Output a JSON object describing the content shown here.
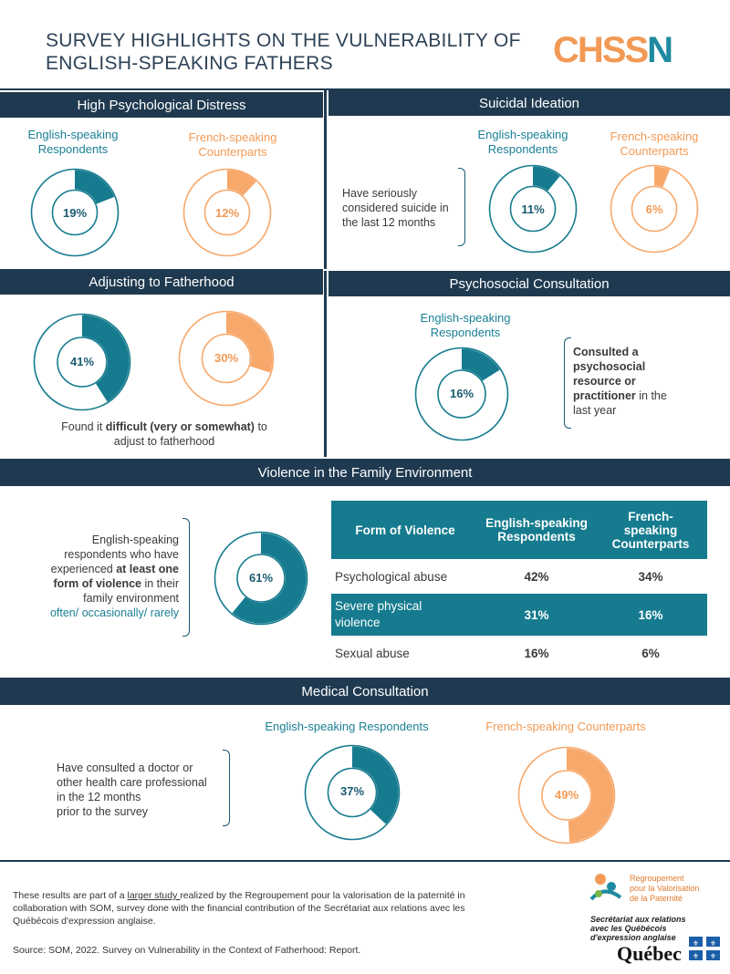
{
  "title_line1": "SURVEY HIGHLIGHTS ON THE  VULNERABILITY OF",
  "title_line2": "ENGLISH-SPEAKING FATHERS",
  "logo": {
    "part1": "CHSS",
    "part2": "N"
  },
  "colors": {
    "teal": "#167b8f",
    "orange": "#f7a86b",
    "navy": "#1f3a50"
  },
  "distress": {
    "header": "High Psychological Distress",
    "en_label": "English-speaking\nRespondents",
    "fr_label": "French-speaking\nCounterparts",
    "en_value": 19,
    "en_text": "19%",
    "fr_value": 12,
    "fr_text": "12%"
  },
  "suicide": {
    "header": "Suicidal Ideation",
    "en_label": "English-speaking\nRespondents",
    "fr_label": "French-speaking\nCounterparts",
    "desc": "Have seriously\nconsidered suicide in\nthe last 12 months",
    "en_value": 11,
    "en_text": "11%",
    "fr_value": 6,
    "fr_text": "6%"
  },
  "fatherhood": {
    "header": "Adjusting to Fatherhood",
    "en_value": 41,
    "en_text": "41%",
    "fr_value": 30,
    "fr_text": "30%",
    "desc_pre": "Found it ",
    "desc_bold": "difficult (very or somewhat)",
    "desc_post": " to",
    "desc_line2": "adjust to fatherhood"
  },
  "psychosocial": {
    "header": "Psychosocial Consultation",
    "en_label": "English-speaking\nRespondents",
    "en_value": 16,
    "en_text": "16%",
    "desc_bold": "Consulted a\npsychosocial\nresource or\npractitioner",
    "desc_post": " in the",
    "desc_line2": "last year"
  },
  "violence": {
    "header": "Violence in the Family Environment",
    "desc1": "English-speaking",
    "desc2": "respondents who have",
    "desc3_pre": "experienced ",
    "desc3_bold": "at least one",
    "desc4_bold": "form of violence",
    "desc4_post": " in their",
    "desc5": "family environment",
    "desc6": "often/ occasionally/ rarely",
    "value": 61,
    "value_text": "61%",
    "table": {
      "col1": "Form of Violence",
      "col2": "English-speaking\nRespondents",
      "col3": "French-\nspeaking\nCounterparts",
      "rows": [
        {
          "label": "Psychological abuse",
          "en": "42%",
          "fr": "34%"
        },
        {
          "label": "Severe physical\nviolence",
          "en": "31%",
          "fr": "16%"
        },
        {
          "label": "Sexual abuse",
          "en": "16%",
          "fr": "6%"
        }
      ]
    }
  },
  "medical": {
    "header": "Medical Consultation",
    "en_label": "English-speaking Respondents",
    "fr_label": "French-speaking Counterparts",
    "desc": "Have consulted a doctor or\nother health care professional\nin the 12 months\nprior to the survey",
    "en_value": 37,
    "en_text": "37%",
    "fr_value": 49,
    "fr_text": "49%"
  },
  "footer": {
    "p1_pre": "These results are part of a ",
    "p1_link": "larger study ",
    "p1_post": "realized by the Regroupement pour la valorisation de la paternité in collaboration with SOM, survey done with the financial contribution of the Secrétariat aux relations avec les Québécois d'expression anglaise.",
    "source": "Source: SOM, 2022. Survey on Vulnerability in the Context of Fatherhood: Report."
  },
  "logos": {
    "rvp": "Regroupement\npour la Valorisation\nde la Paternité",
    "sec": "Secrétariat aux relations\navec les Québécois\nd'expression anglaise",
    "quebec": "Québec"
  }
}
